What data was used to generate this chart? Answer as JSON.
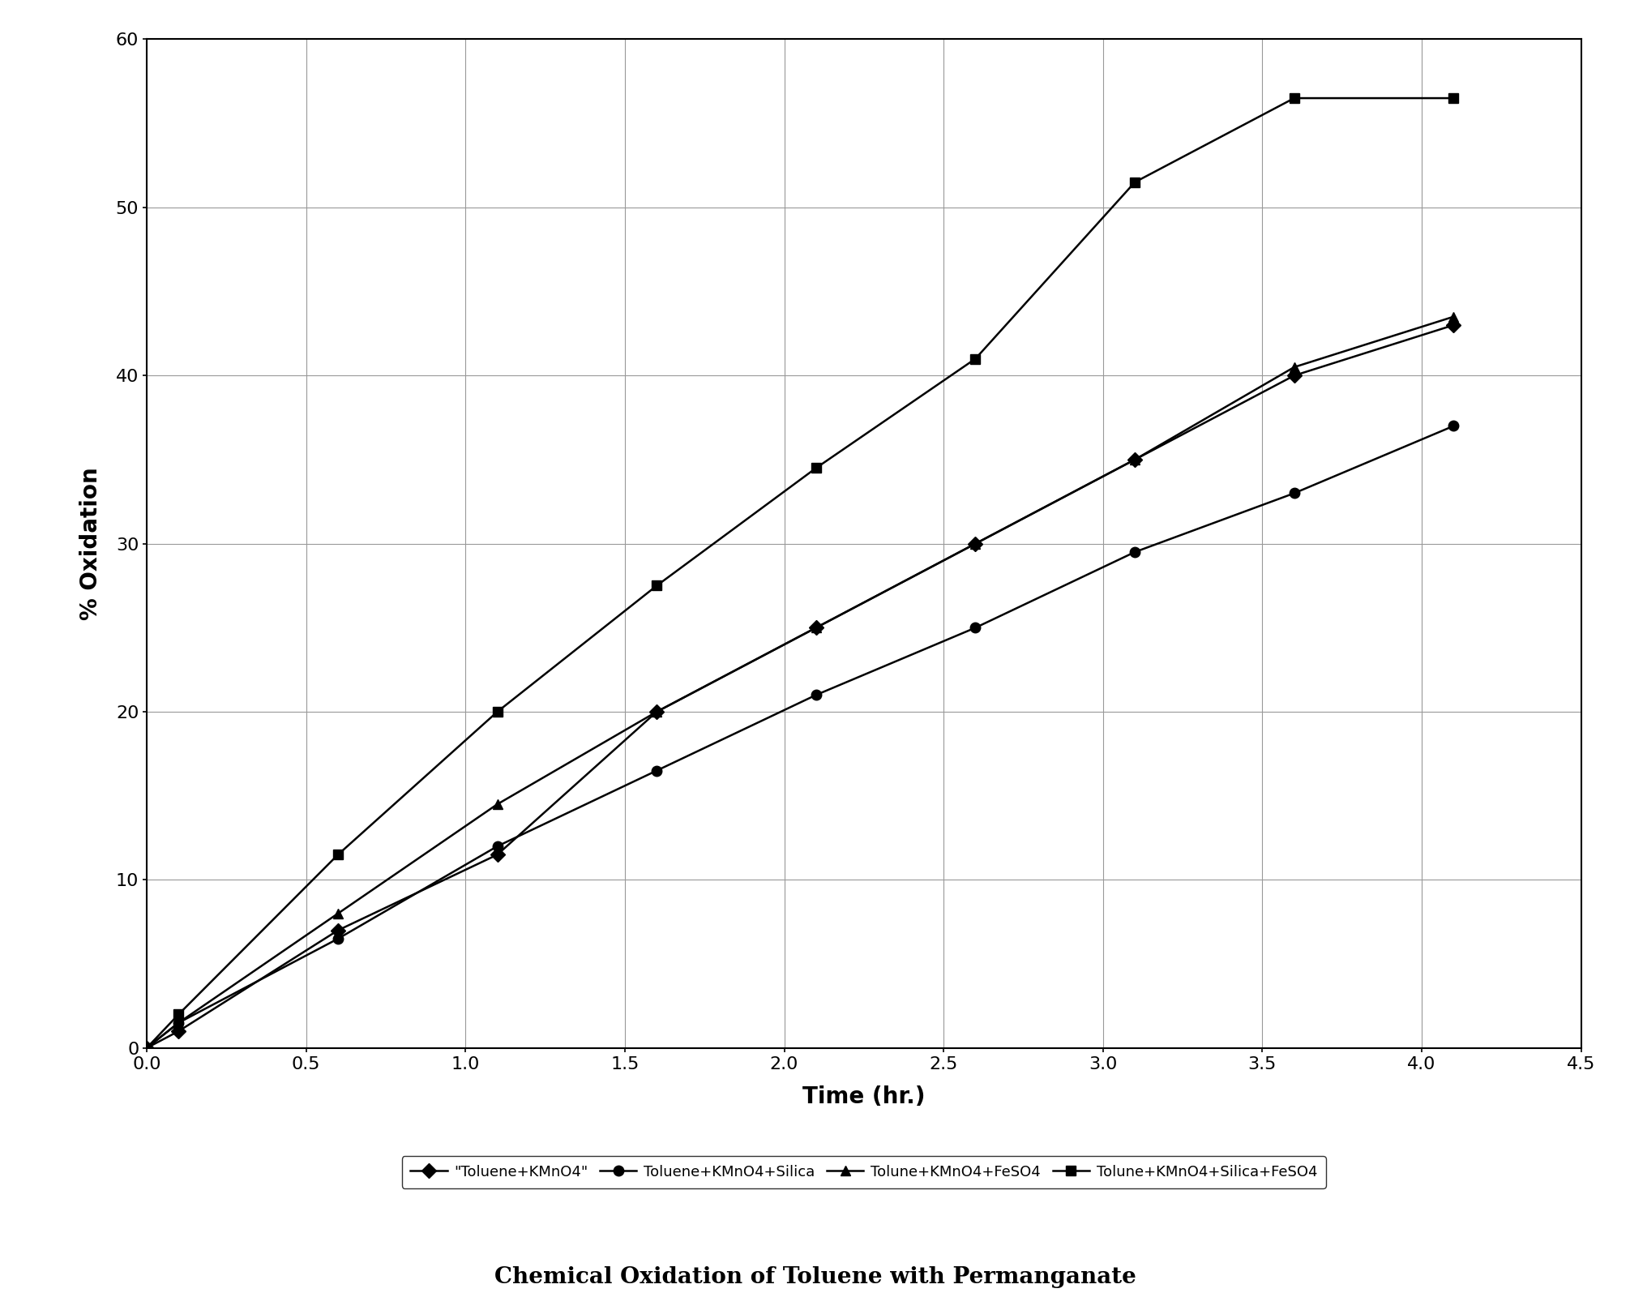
{
  "title": "Chemical Oxidation of Toluene with Permanganate",
  "xlabel": "Time (hr.)",
  "ylabel": "% Oxidation",
  "xlim": [
    0,
    4.5
  ],
  "ylim": [
    0,
    60
  ],
  "xticks": [
    0,
    0.5,
    1.0,
    1.5,
    2.0,
    2.5,
    3.0,
    3.5,
    4.0,
    4.5
  ],
  "yticks": [
    0,
    10,
    20,
    30,
    40,
    50,
    60
  ],
  "background_color": "#ffffff",
  "series": [
    {
      "label": "\"Toluene+KMnO4\"",
      "x": [
        0,
        0.1,
        0.6,
        1.1,
        1.6,
        2.1,
        2.6,
        3.1,
        3.6,
        4.1
      ],
      "y": [
        0,
        1.0,
        7.0,
        11.5,
        20.0,
        25.0,
        30.0,
        35.0,
        40.0,
        43.0
      ],
      "marker": "D",
      "markersize": 9,
      "linewidth": 1.8,
      "color": "#000000"
    },
    {
      "label": "Toluene+KMnO4+Silica",
      "x": [
        0,
        0.1,
        0.6,
        1.1,
        1.6,
        2.1,
        2.6,
        3.1,
        3.6,
        4.1
      ],
      "y": [
        0,
        1.5,
        6.5,
        12.0,
        16.5,
        21.0,
        25.0,
        29.5,
        33.0,
        37.0
      ],
      "marker": "o",
      "markersize": 9,
      "linewidth": 1.8,
      "color": "#000000"
    },
    {
      "label": "Tolune+KMnO4+FeSO4",
      "x": [
        0,
        0.1,
        0.6,
        1.1,
        1.6,
        2.1,
        2.6,
        3.1,
        3.6,
        4.1
      ],
      "y": [
        0,
        1.5,
        8.0,
        14.5,
        20.0,
        25.0,
        30.0,
        35.0,
        40.5,
        43.5
      ],
      "marker": "^",
      "markersize": 9,
      "linewidth": 1.8,
      "color": "#000000"
    },
    {
      "label": "Tolune+KMnO4+Silica+FeSO4",
      "x": [
        0,
        0.1,
        0.6,
        1.1,
        1.6,
        2.1,
        2.6,
        3.1,
        3.6,
        4.1
      ],
      "y": [
        0,
        2.0,
        11.5,
        20.0,
        27.5,
        34.5,
        41.0,
        51.5,
        56.5,
        56.5
      ],
      "marker": "s",
      "markersize": 9,
      "linewidth": 1.8,
      "color": "#000000"
    }
  ],
  "legend_fontsize": 13,
  "axis_label_fontsize": 20,
  "tick_fontsize": 16,
  "title_fontsize": 20,
  "title_fontweight": "bold"
}
